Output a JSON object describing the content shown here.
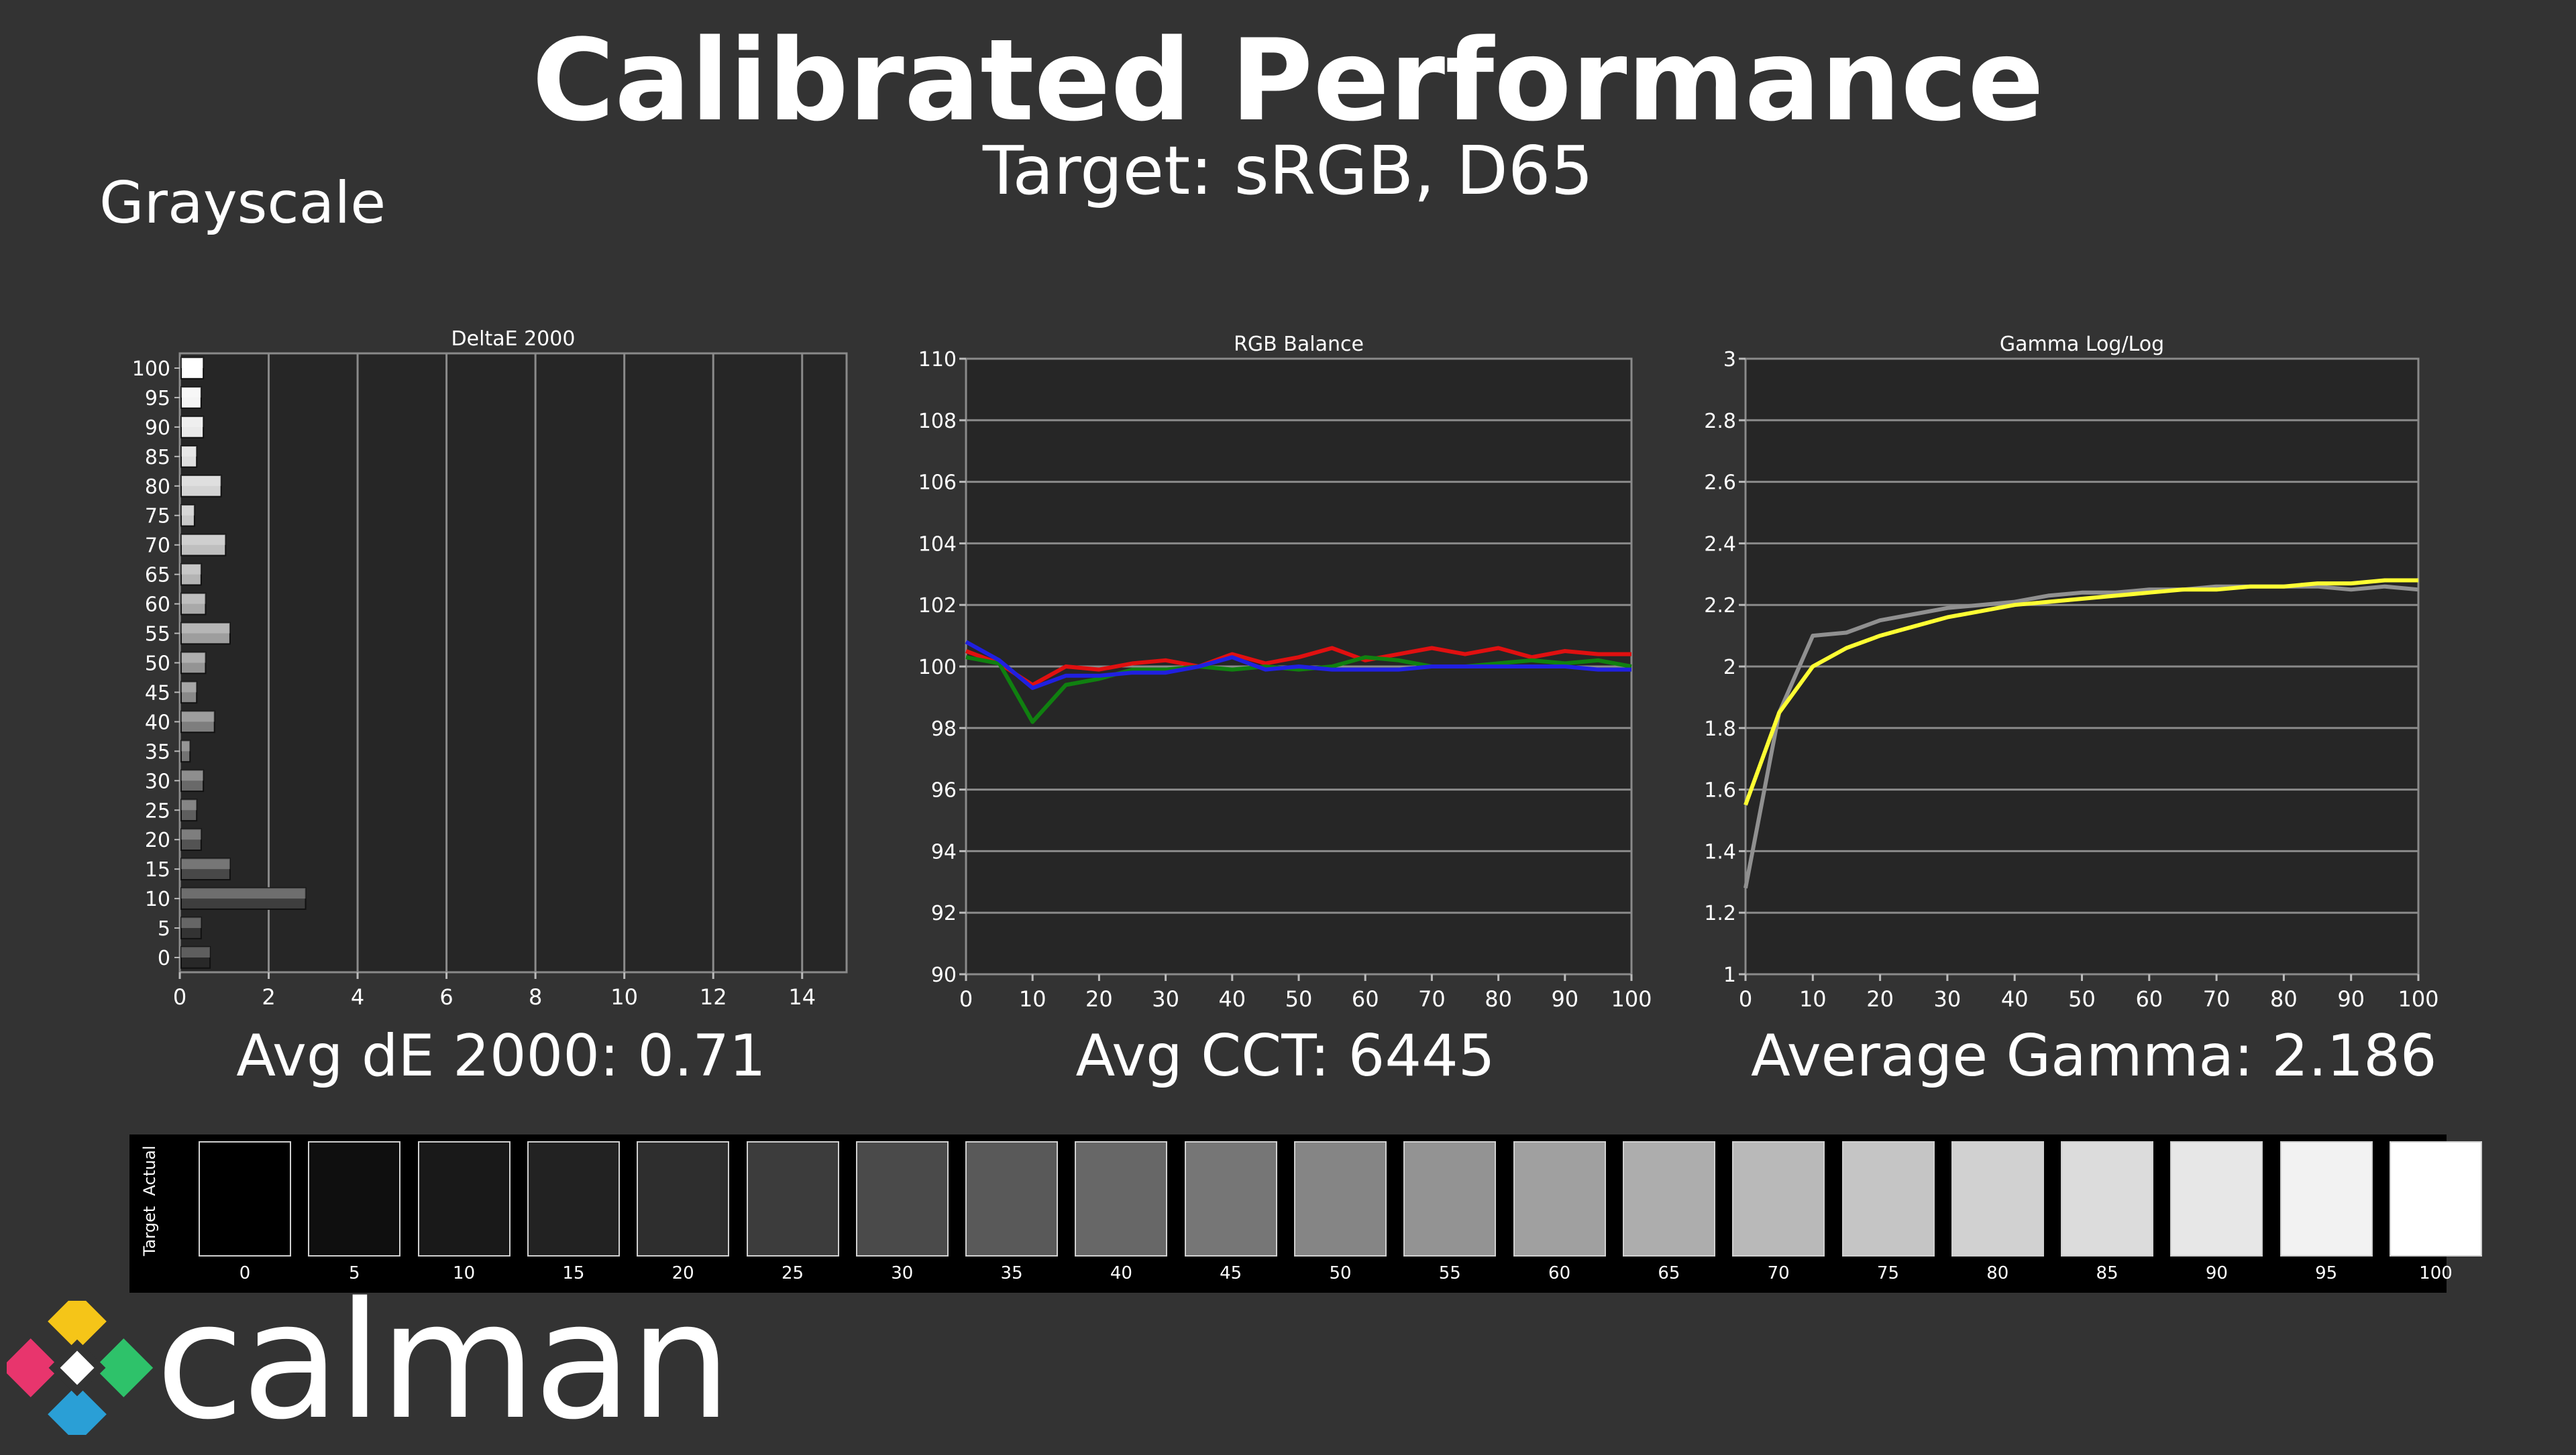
{
  "header": {
    "title": "Calibrated Performance",
    "subtitle": "Target: sRGB, D65",
    "section": "Grayscale"
  },
  "summary": {
    "deltae": "Avg dE 2000: 0.71",
    "cct": "Avg CCT: 6445",
    "gamma": "Average Gamma: 2.186"
  },
  "swatches": {
    "side_actual": "Actual",
    "side_target": "Target",
    "labels": [
      "0",
      "5",
      "10",
      "15",
      "20",
      "25",
      "30",
      "35",
      "40",
      "45",
      "50",
      "55",
      "60",
      "65",
      "70",
      "75",
      "80",
      "85",
      "90",
      "95",
      "100"
    ],
    "colors": [
      "#000000",
      "#0f0f0f",
      "#191919",
      "#222222",
      "#2e2e2e",
      "#3c3c3c",
      "#4a4a4a",
      "#595959",
      "#676767",
      "#767676",
      "#858585",
      "#939393",
      "#a0a0a0",
      "#adadad",
      "#b9b9b9",
      "#c5c5c5",
      "#d1d1d1",
      "#dcdcdc",
      "#e7e7e7",
      "#f2f2f2",
      "#ffffff"
    ]
  },
  "brand": {
    "name": "calman"
  },
  "chart_data": [
    {
      "type": "bar",
      "orientation": "horizontal",
      "title": "DeltaE 2000",
      "categories": [
        "0",
        "5",
        "10",
        "15",
        "20",
        "25",
        "30",
        "35",
        "40",
        "45",
        "50",
        "55",
        "60",
        "65",
        "70",
        "75",
        "80",
        "85",
        "90",
        "95",
        "100"
      ],
      "values": [
        0.65,
        0.45,
        2.8,
        1.1,
        0.45,
        0.35,
        0.5,
        0.2,
        0.75,
        0.35,
        0.55,
        1.1,
        0.55,
        0.45,
        1.0,
        0.3,
        0.9,
        0.35,
        0.5,
        0.45,
        0.5
      ],
      "xlim": [
        0,
        15
      ],
      "xticks": [
        "0",
        "2",
        "4",
        "6",
        "8",
        "10",
        "12",
        "14"
      ],
      "grid": true
    },
    {
      "type": "line",
      "title": "RGB Balance",
      "x": [
        0,
        5,
        10,
        15,
        20,
        25,
        30,
        35,
        40,
        45,
        50,
        55,
        60,
        65,
        70,
        75,
        80,
        85,
        90,
        95,
        100
      ],
      "ylim": [
        90,
        110
      ],
      "yticks": [
        "90",
        "92",
        "94",
        "96",
        "98",
        "100",
        "102",
        "104",
        "106",
        "108",
        "110"
      ],
      "xticks": [
        "0",
        "10",
        "20",
        "30",
        "40",
        "50",
        "60",
        "70",
        "80",
        "90",
        "100"
      ],
      "series": [
        {
          "color": "#e01010",
          "values": [
            100.5,
            100.1,
            99.4,
            100.0,
            99.9,
            100.1,
            100.2,
            100.0,
            100.4,
            100.1,
            100.3,
            100.6,
            100.2,
            100.4,
            100.6,
            100.4,
            100.6,
            100.3,
            100.5,
            100.4,
            100.4
          ]
        },
        {
          "color": "#108010",
          "values": [
            100.3,
            100.1,
            98.2,
            99.4,
            99.6,
            99.9,
            99.9,
            100.0,
            99.9,
            100.0,
            99.9,
            100.0,
            100.3,
            100.2,
            100.0,
            100.0,
            100.1,
            100.2,
            100.1,
            100.2,
            100.0
          ]
        },
        {
          "color": "#2020e0",
          "values": [
            100.8,
            100.2,
            99.3,
            99.7,
            99.7,
            99.8,
            99.8,
            100.0,
            100.3,
            99.9,
            100.0,
            99.9,
            99.9,
            99.9,
            100.0,
            100.0,
            100.0,
            100.0,
            100.0,
            99.9,
            99.9
          ]
        }
      ],
      "grid": true
    },
    {
      "type": "line",
      "title": "Gamma Log/Log",
      "x": [
        0,
        5,
        10,
        15,
        20,
        25,
        30,
        35,
        40,
        45,
        50,
        55,
        60,
        65,
        70,
        75,
        80,
        85,
        90,
        95,
        100
      ],
      "ylim": [
        1,
        3
      ],
      "yticks": [
        "1",
        "1.2",
        "1.4",
        "1.6",
        "1.8",
        "2",
        "2.2",
        "2.4",
        "2.6",
        "2.8",
        "3"
      ],
      "xticks": [
        "0",
        "10",
        "20",
        "30",
        "40",
        "50",
        "60",
        "70",
        "80",
        "90",
        "100"
      ],
      "series": [
        {
          "color": "#909090",
          "values": [
            1.28,
            1.85,
            2.1,
            2.11,
            2.15,
            2.17,
            2.19,
            2.2,
            2.21,
            2.23,
            2.24,
            2.24,
            2.25,
            2.25,
            2.26,
            2.26,
            2.26,
            2.26,
            2.25,
            2.26,
            2.25
          ]
        },
        {
          "color": "#ffff33",
          "values": [
            1.55,
            1.85,
            2.0,
            2.06,
            2.1,
            2.13,
            2.16,
            2.18,
            2.2,
            2.21,
            2.22,
            2.23,
            2.24,
            2.25,
            2.25,
            2.26,
            2.26,
            2.27,
            2.27,
            2.28,
            2.28
          ]
        }
      ],
      "grid": true
    }
  ]
}
